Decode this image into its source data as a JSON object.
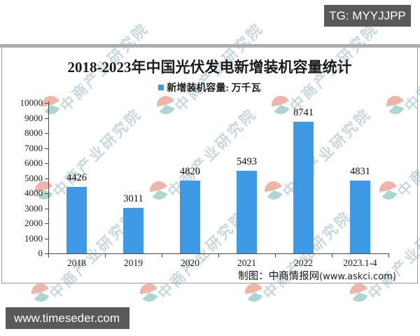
{
  "badges": {
    "tg_label": "TG: MYYJJPP",
    "site_label": "www.timeseder.com"
  },
  "chart_data": {
    "type": "bar",
    "title": "2018-2023年中国光伏发电新增装机容量统计",
    "legend": {
      "label": "新增装机容量: 万千瓦",
      "position": "top-center",
      "marker_color": "#3e9ae5"
    },
    "categories": [
      "2018",
      "2019",
      "2020",
      "2021",
      "2022",
      "2023.1-4"
    ],
    "values": [
      4426,
      3011,
      4820,
      5493,
      8741,
      4831
    ],
    "value_labels_shown": true,
    "xlabel": "",
    "ylabel": "",
    "unit": "万千瓦",
    "ylim": [
      0,
      10000
    ],
    "ytick_step": 1000,
    "grid": false,
    "bar_color": "#3e9ae5"
  },
  "attribution": {
    "maker_label": "制图：中商情报网",
    "url_label": "(www.askci.com)"
  },
  "watermark": {
    "text": "中商产业研究院",
    "logo_name": "cbi-logo-icon"
  },
  "colors": {
    "badge_bg": "#59595b",
    "bar": "#3e9ae5",
    "axis": "#4a4a4a",
    "separator_band": "#abacae",
    "panel_border": "#9b9b9b"
  }
}
